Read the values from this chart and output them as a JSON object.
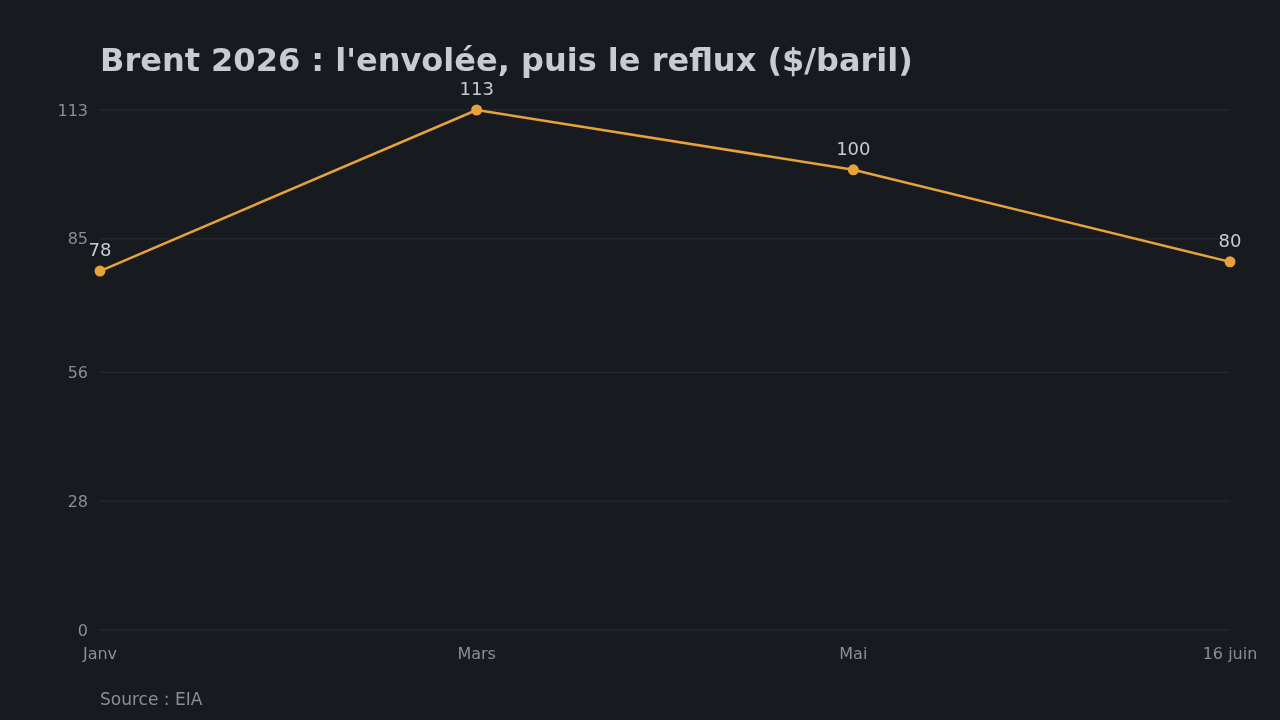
{
  "chart_data": {
    "type": "line",
    "title": "Brent 2026 : l'envolée, puis le reflux ($/baril)",
    "categories": [
      "Janv",
      "Mars",
      "Mai",
      "16 juin"
    ],
    "series": [
      {
        "color": "#e8a23a",
        "values": [
          78,
          113,
          100,
          80
        ]
      }
    ],
    "ylim": [
      0,
      113
    ],
    "yticks": [
      0,
      28,
      56,
      85,
      113
    ],
    "grid": "y",
    "marker": "circle",
    "line_style": "solid",
    "data_labels": true,
    "annotations": [
      "Source : EIA"
    ]
  }
}
